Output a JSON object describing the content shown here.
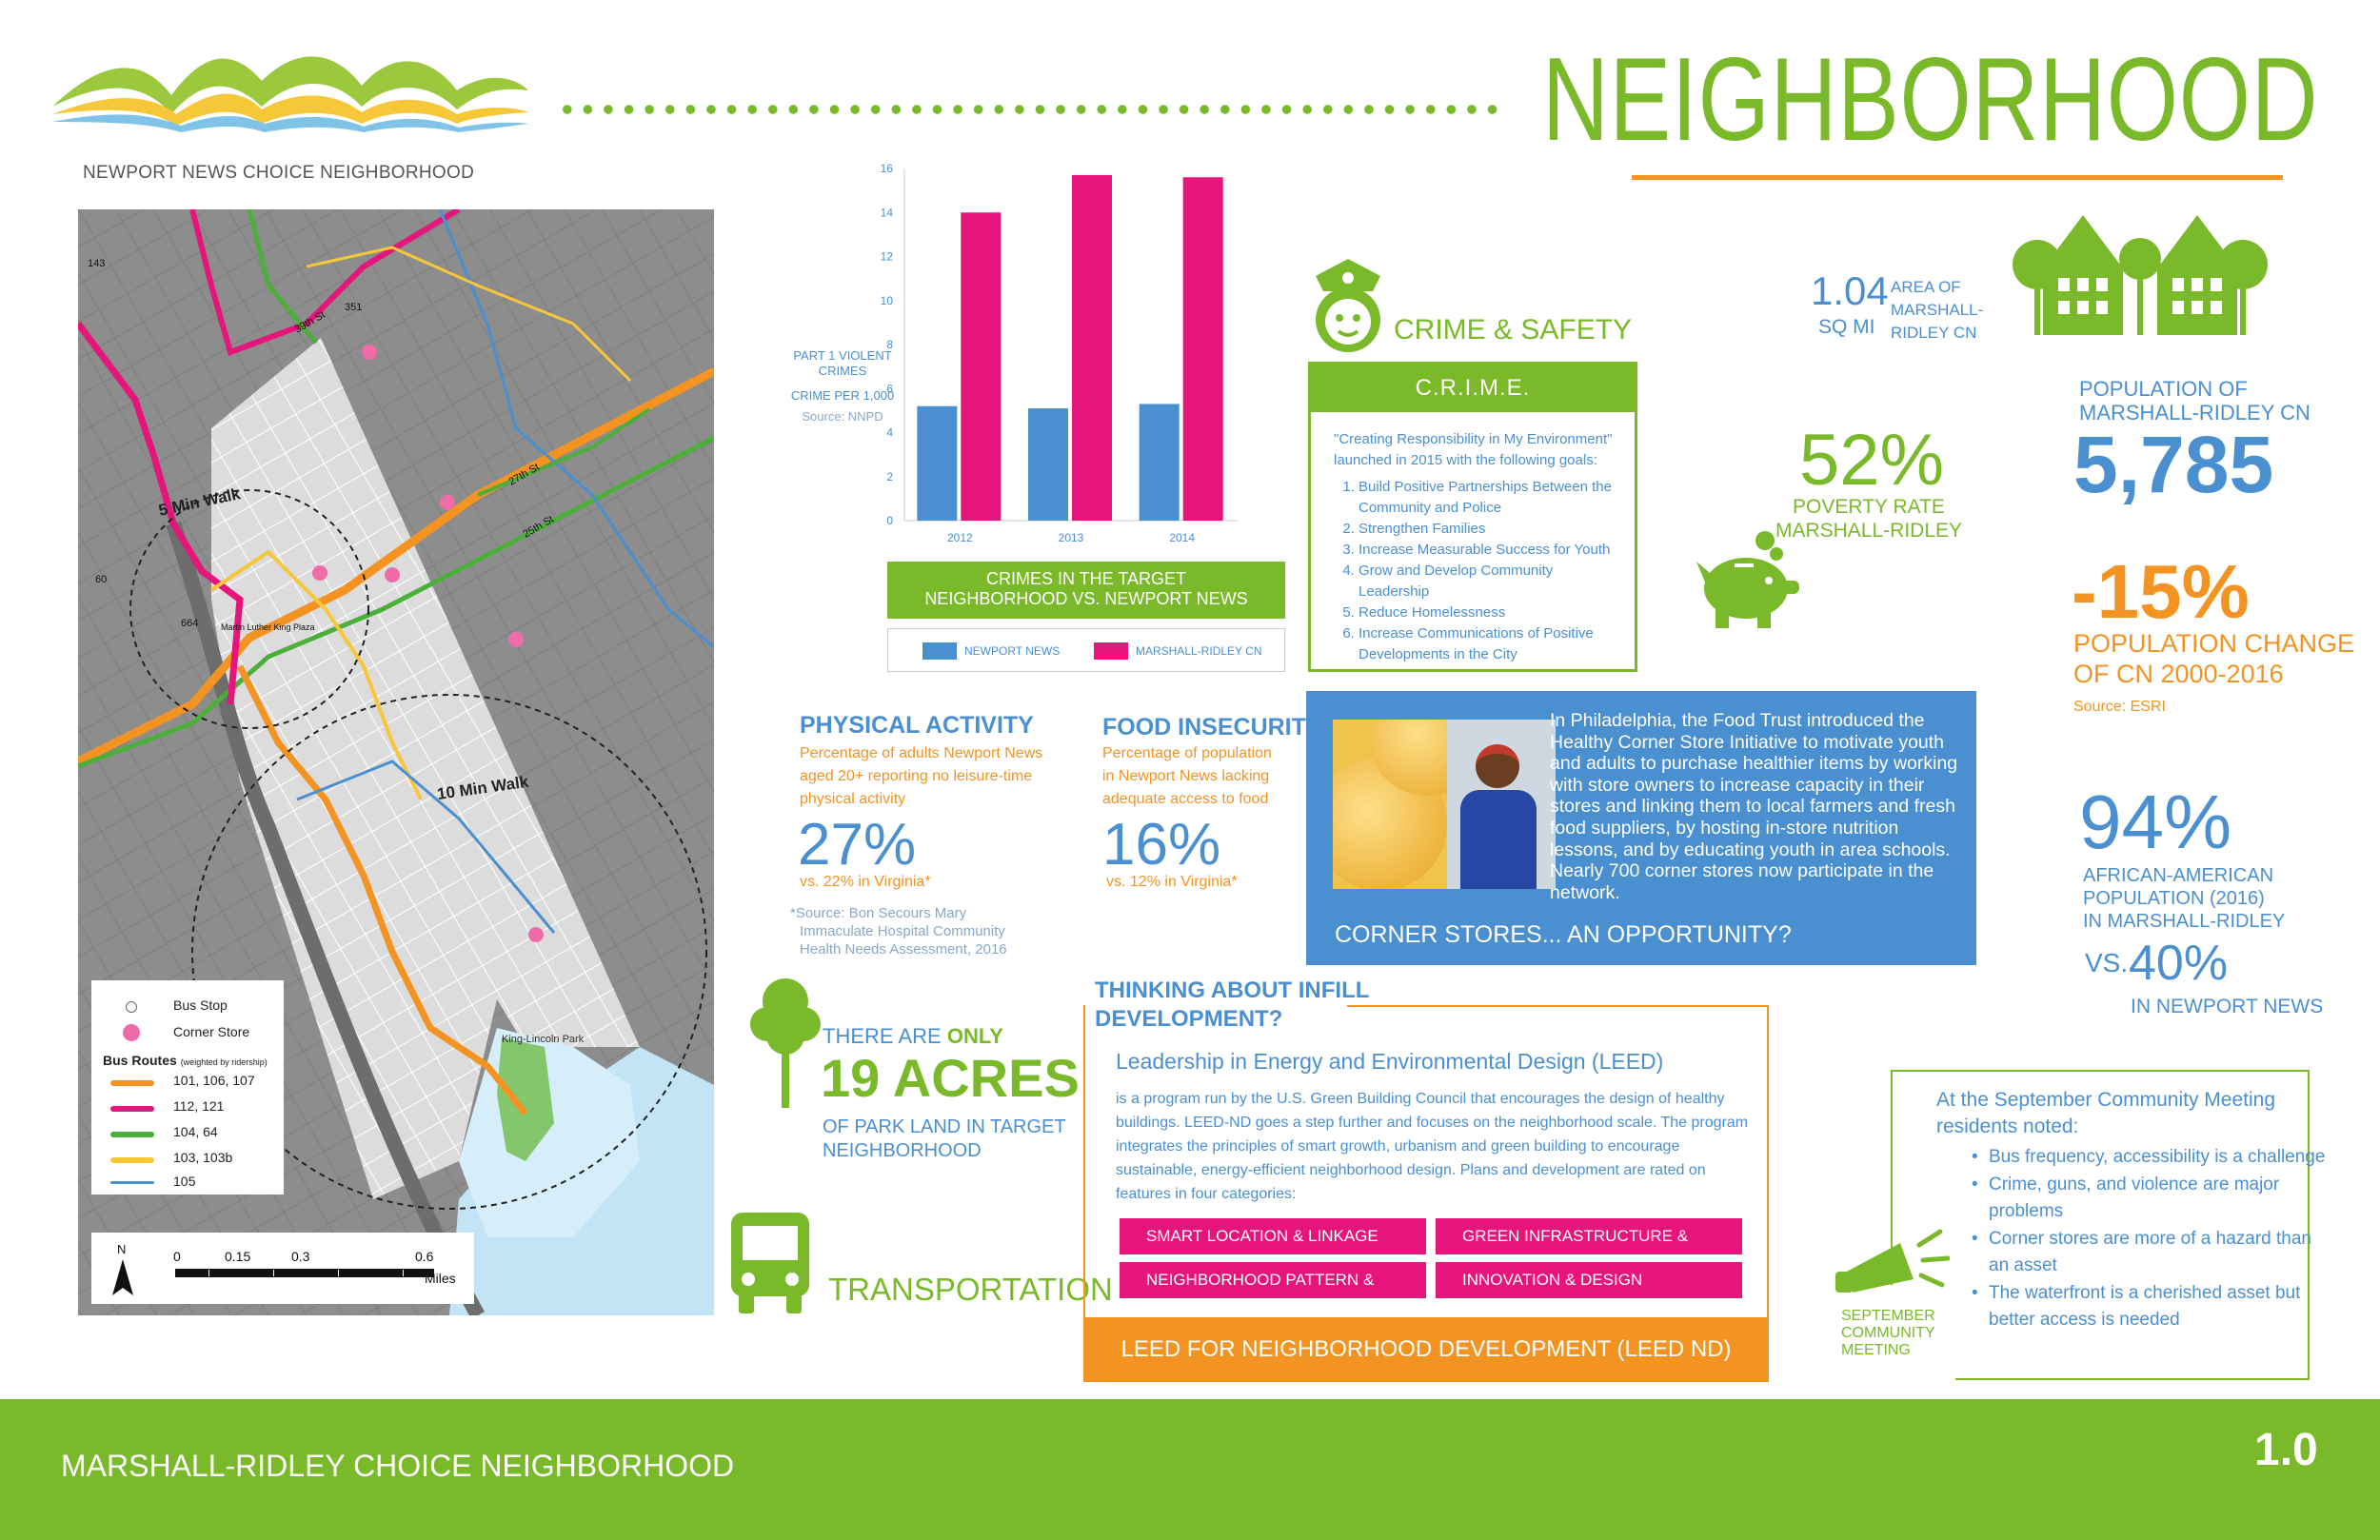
{
  "header": {
    "logo_caption": "NEWPORT NEWS CHOICE NEIGHBORHOOD",
    "title": "NEIGHBORHOOD"
  },
  "colors": {
    "green": "#7ab929",
    "blue": "#4a8fd0",
    "orange": "#f39321",
    "pink": "#e5157c"
  },
  "map": {
    "street_labels": [
      "5 Min Walk",
      "10 Min Walk",
      "King-Lincoln Park",
      "664",
      "60",
      "143",
      "351",
      "39th St",
      "27th St",
      "25th St",
      "Martin Luther King Plaza"
    ],
    "legend": {
      "bus_stop": "Bus Stop",
      "corner_store": "Corner Store",
      "routes_title": "Bus Routes",
      "routes_note": "(weighted by ridership)",
      "routes": [
        {
          "label": "101, 106, 107",
          "color": "#f39321"
        },
        {
          "label": "112, 121",
          "color": "#e5157c"
        },
        {
          "label": "104, 64",
          "color": "#4caf3a"
        },
        {
          "label": "103, 103b",
          "color": "#f7c73a"
        },
        {
          "label": "105",
          "color": "#4a8fd0"
        }
      ]
    },
    "scale": {
      "north": "N",
      "ticks": [
        "0",
        "0.15",
        "0.3",
        "0.6"
      ],
      "unit": "Miles"
    }
  },
  "crime_chart": {
    "ylabel_line1": "PART 1 VIOLENT",
    "ylabel_line2": "CRIMES",
    "ylabel_line3": "CRIME PER 1,000",
    "source": "Source: NNPD",
    "caption_line1": "CRIMES IN THE TARGET",
    "caption_line2": "NEIGHBORHOOD VS. NEWPORT NEWS",
    "legend": [
      "NEWPORT NEWS",
      "MARSHALL-RIDLEY CN"
    ]
  },
  "chart_data": {
    "type": "bar",
    "categories": [
      "2012",
      "2013",
      "2014"
    ],
    "series": [
      {
        "name": "NEWPORT NEWS",
        "values": [
          5.2,
          5.1,
          5.3
        ]
      },
      {
        "name": "MARSHALL-RIDLEY CN",
        "values": [
          14.0,
          15.7,
          15.6
        ]
      }
    ],
    "ylim": [
      0,
      16
    ],
    "yticks": [
      "0",
      "2",
      "4",
      "6",
      "8",
      "10",
      "12",
      "14",
      "16"
    ],
    "xlabel": "",
    "ylabel": "PART 1 VIOLENT CRIMES CRIME PER 1,000"
  },
  "crime": {
    "heading": "CRIME & SAFETY",
    "box_title": "C.R.I.M.E.",
    "intro_line1": "\"Creating Responsibility in My Environment\"",
    "intro_line2": "launched in 2015 with the following goals:",
    "goals": [
      "Build Positive Partnerships Between the Community and Police",
      "Strengthen Families",
      "Increase Measurable Success for Youth",
      "Grow and Develop Community Leadership",
      "Reduce Homelessness",
      "Increase Communications of Positive Developments in the City"
    ]
  },
  "stats": {
    "area_value": "1.04",
    "area_unit": "SQ MI",
    "area_label_1": "AREA OF",
    "area_label_2": "MARSHALL-",
    "area_label_3": "RIDLEY CN",
    "poverty_value": "52%",
    "poverty_label_1": "POVERTY RATE",
    "poverty_label_2": "MARSHALL-RIDLEY",
    "population_label_1": "POPULATION OF",
    "population_label_2": "MARSHALL-RIDLEY CN",
    "population_value": "5,785",
    "change_value": "-15%",
    "change_label_1": "POPULATION CHANGE",
    "change_label_2": "OF CN 2000-2016",
    "change_source": "Source: ESRI",
    "aa_value": "94%",
    "aa_label_1": "AFRICAN-AMERICAN",
    "aa_label_2": "POPULATION (2016)",
    "aa_label_3": "IN MARSHALL-RIDLEY",
    "aa_vs": "VS.",
    "aa_compare": "40%",
    "aa_compare_label": "IN NEWPORT NEWS"
  },
  "physical": {
    "title": "PHYSICAL ACTIVITY",
    "desc_1": "Percentage of adults Newport News",
    "desc_2": "aged 20+ reporting no leisure-time",
    "desc_3": "physical activity",
    "value": "27%",
    "compare": "vs. 22% in Virginia*",
    "source_1": "*Source: Bon Secours Mary",
    "source_2": "Immaculate Hospital Community",
    "source_3": "Health Needs Assessment, 2016"
  },
  "food": {
    "title": "FOOD INSECURITY",
    "desc_1": "Percentage of population",
    "desc_2": "in Newport News lacking",
    "desc_3": "adequate access to food",
    "value": "16%",
    "compare": "vs. 12% in Virginia*"
  },
  "corner": {
    "text": "In Philadelphia, the Food Trust introduced the Healthy Corner Store Initiative to motivate youth and adults to purchase healthier items by working with store owners to increase capacity in their stores and linking them to local farmers and fresh food suppliers, by hosting in-store nutrition lessons, and by educating youth in area schools. Nearly 700 corner stores now participate in the network.",
    "title": "CORNER STORES... AN OPPORTUNITY?"
  },
  "park": {
    "line1_a": "THERE ARE",
    "line1_b": "ONLY",
    "value": "19 ACRES",
    "line2": "OF PARK LAND IN TARGET",
    "line3": "NEIGHBORHOOD"
  },
  "transportation": {
    "label": "TRANSPORTATION"
  },
  "leed": {
    "heading_1": "THINKING ABOUT INFILL",
    "heading_2": "DEVELOPMENT?",
    "subtitle": "Leadership in Energy and Environmental Design (LEED)",
    "body": "is a program run by the U.S. Green Building Council that encourages the design of healthy buildings. LEED-ND goes a step further and focuses on the neighborhood scale. The program integrates the principles of smart growth, urbanism and green building to encourage sustainable, energy-efficient neighborhood design. Plans and development are rated on features in four categories:",
    "categories": [
      "SMART LOCATION & LINKAGE",
      "GREEN INFRASTRUCTURE & BUILDINGS",
      "NEIGHBORHOOD PATTERN & DESIGN",
      "INNOVATION & DESIGN"
    ],
    "footer": "LEED FOR NEIGHBORHOOD DEVELOPMENT (LEED ND)"
  },
  "meeting": {
    "intro_1": "At the September Community Meeting",
    "intro_2": "residents noted:",
    "notes": [
      "Bus frequency, accessibility is a challenge",
      "Crime, guns, and violence are major problems",
      "Corner stores are more of a hazard than an asset",
      "The waterfront is a cherished asset but better access is needed"
    ],
    "icon_label_1": "SEPTEMBER",
    "icon_label_2": "COMMUNITY",
    "icon_label_3": "MEETING"
  },
  "footer": {
    "title": "MARSHALL-RIDLEY CHOICE NEIGHBORHOOD",
    "page": "1.0"
  }
}
